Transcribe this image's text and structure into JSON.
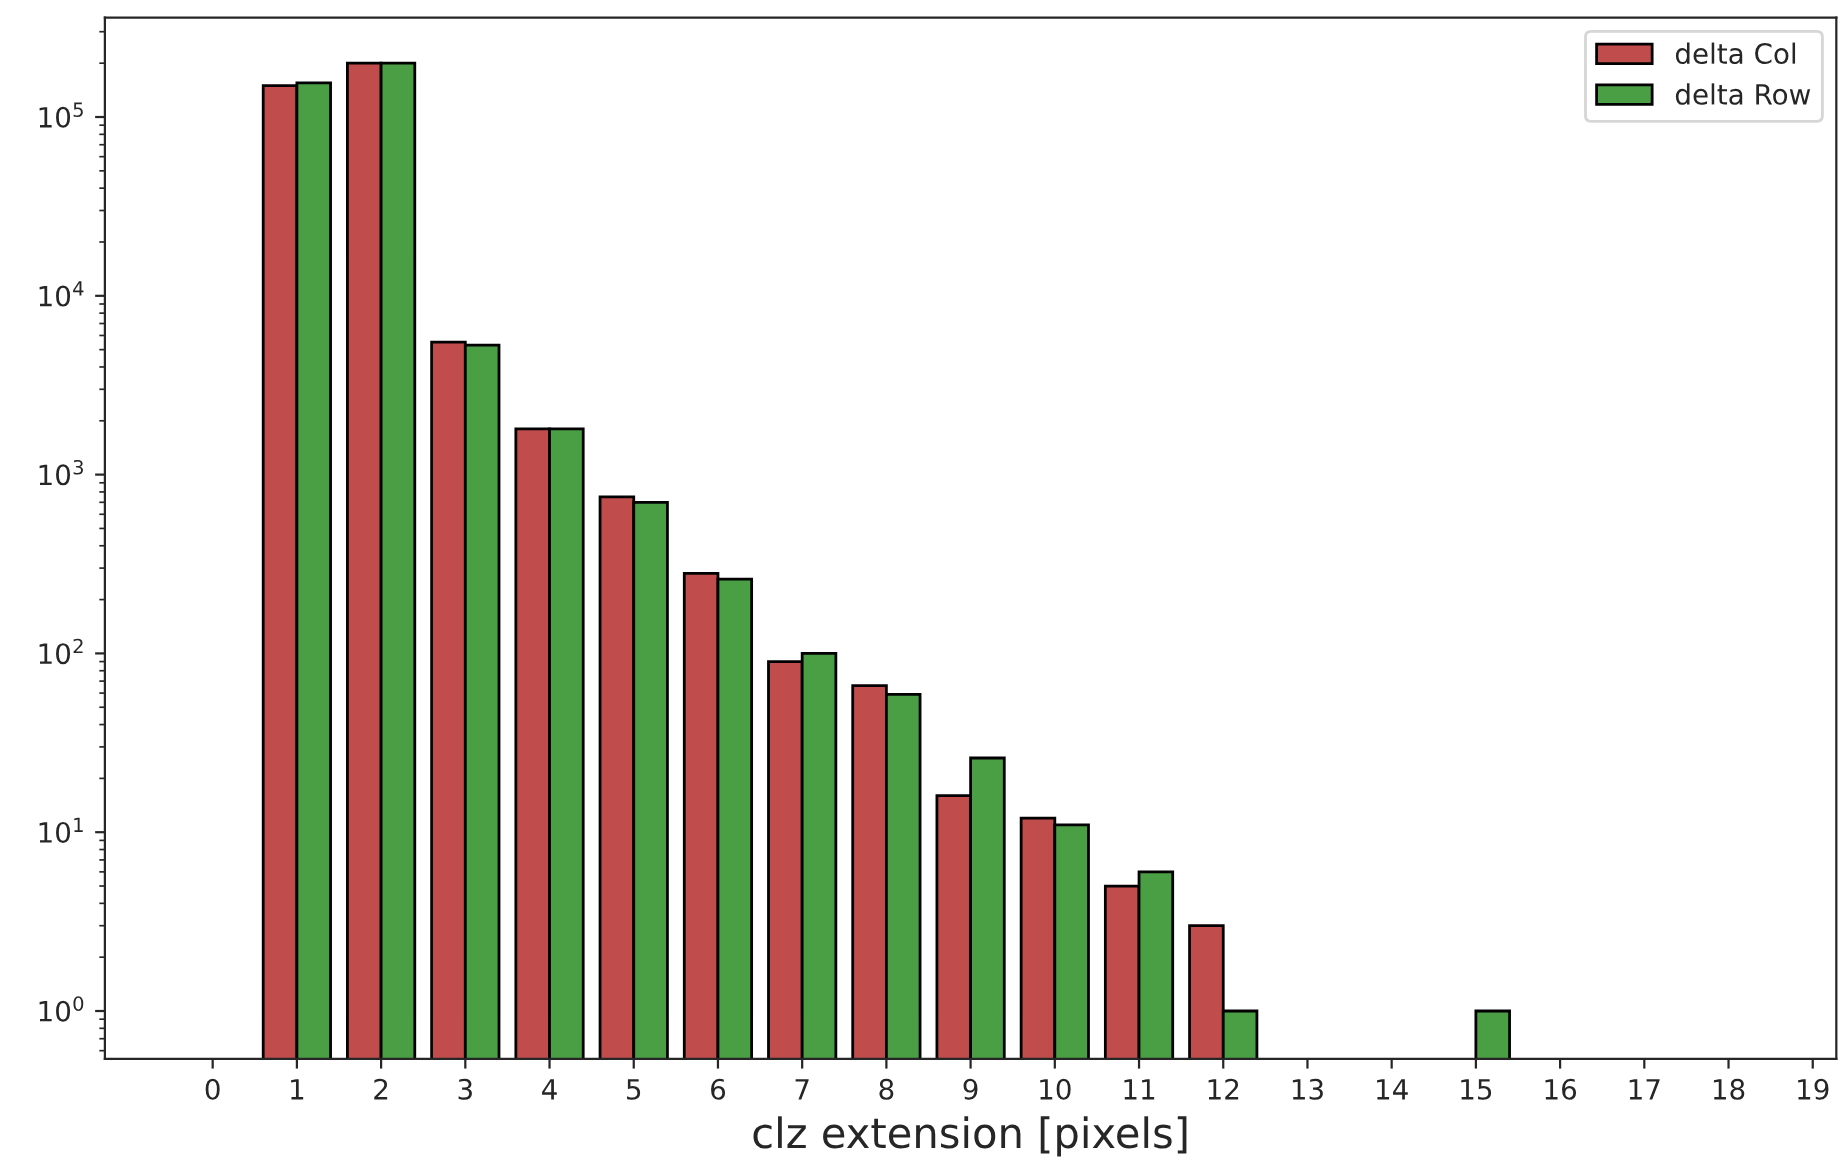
{
  "chart_data": {
    "type": "bar",
    "xlabel": "clz extension [pixels]",
    "x": [
      1,
      2,
      3,
      4,
      5,
      6,
      7,
      8,
      9,
      10,
      11,
      12,
      15
    ],
    "series": [
      {
        "name": "delta Col",
        "color": "#c14c4c",
        "values": [
          150000,
          200000,
          5500,
          1800,
          750,
          280,
          90,
          66,
          16,
          12,
          5,
          3,
          null
        ]
      },
      {
        "name": "delta Row",
        "color": "#4a9e44",
        "values": [
          155000,
          200000,
          5300,
          1800,
          700,
          260,
          100,
          59,
          26,
          11,
          6,
          1,
          1
        ]
      }
    ],
    "log": "y",
    "xlim": [
      -1.28,
      19.28
    ],
    "ylim": [
      0.54,
      360000
    ],
    "xticks": [
      0,
      1,
      2,
      3,
      4,
      5,
      6,
      7,
      8,
      9,
      10,
      11,
      12,
      13,
      14,
      15,
      16,
      17,
      18,
      19
    ],
    "yticks": [
      {
        "value": 1,
        "label": "10$^{0}$"
      },
      {
        "value": 10,
        "label": "10$^{1}$"
      },
      {
        "value": 100,
        "label": "10$^{2}$"
      },
      {
        "value": 1000,
        "label": "10$^{3}$"
      },
      {
        "value": 10000,
        "label": "10$^{4}$"
      },
      {
        "value": 100000,
        "label": "10$^{5}$"
      }
    ],
    "grid": false,
    "legend": "top right"
  }
}
